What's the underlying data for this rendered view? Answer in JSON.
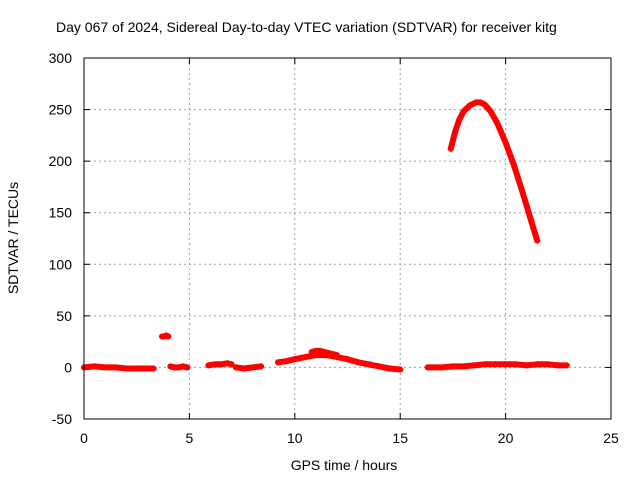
{
  "chart_data": {
    "type": "scatter",
    "title": "Day 067 of 2024, Sidereal Day-to-day VTEC variation (SDTVAR) for receiver kitg",
    "xlabel": "GPS time / hours",
    "ylabel": "SDTVAR / TECUs",
    "xlim": [
      0,
      25
    ],
    "ylim": [
      -50,
      300
    ],
    "xticks": [
      0,
      5,
      10,
      15,
      20,
      25
    ],
    "yticks": [
      -50,
      0,
      50,
      100,
      150,
      200,
      250,
      300
    ],
    "grid": true,
    "marker": "plus",
    "series": [
      {
        "name": "SDTVAR",
        "color": "#ff0000",
        "segments": [
          {
            "x": [
              0.0,
              0.5,
              1.0,
              1.5,
              2.0,
              2.5,
              3.0,
              3.3
            ],
            "y": [
              0,
              1,
              0,
              0,
              -1,
              -1,
              -1,
              -1
            ]
          },
          {
            "x": [
              3.7,
              3.8,
              3.9,
              4.0
            ],
            "y": [
              30,
              30,
              31,
              30
            ]
          },
          {
            "x": [
              4.1,
              4.3,
              4.5,
              4.7,
              4.9
            ],
            "y": [
              1,
              0,
              0,
              1,
              0
            ]
          },
          {
            "x": [
              5.9,
              6.2,
              6.5,
              6.8,
              7.0
            ],
            "y": [
              2,
              3,
              3,
              4,
              3
            ]
          },
          {
            "x": [
              7.2,
              7.6,
              8.0,
              8.4
            ],
            "y": [
              0,
              -1,
              0,
              1
            ]
          },
          {
            "x": [
              9.2,
              9.6,
              10.0,
              10.5,
              11.0,
              11.5,
              12.0,
              12.5,
              13.0,
              13.5,
              14.0,
              14.5,
              15.0
            ],
            "y": [
              5,
              6,
              8,
              10,
              12,
              12,
              10,
              8,
              5,
              3,
              1,
              -1,
              -2
            ]
          },
          {
            "x": [
              10.8,
              11.0,
              11.2,
              11.4,
              11.6,
              11.8,
              12.0
            ],
            "y": [
              15,
              16,
              16,
              15,
              14,
              13,
              12
            ]
          },
          {
            "x": [
              16.3,
              17.0,
              17.5,
              18.0,
              18.5,
              19.0,
              19.5,
              20.0,
              20.5,
              21.0,
              21.5,
              22.0,
              22.5,
              22.9
            ],
            "y": [
              0,
              0,
              1,
              1,
              2,
              3,
              3,
              3,
              3,
              2,
              3,
              3,
              2,
              2
            ]
          },
          {
            "x": [
              17.4,
              17.6,
              17.8,
              18.0,
              18.3,
              18.6,
              18.8,
              19.0,
              19.3,
              19.6,
              20.0,
              20.4,
              20.8,
              21.2,
              21.5
            ],
            "y": [
              212,
              228,
              240,
              248,
              254,
              257,
              257,
              255,
              248,
              237,
              218,
              196,
              170,
              143,
              123
            ]
          }
        ]
      }
    ]
  }
}
